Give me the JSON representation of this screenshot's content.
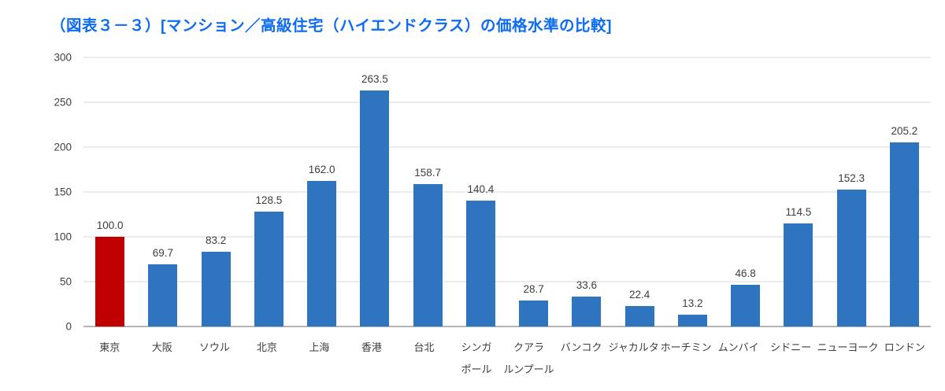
{
  "title": "（図表３－３）[マンション／高級住宅（ハイエンドクラス）の価格水準の比較]",
  "colors": {
    "title": "#0e6cf2",
    "bar_default": "#2f74bf",
    "bar_highlight": "#c00000",
    "gridline": "#d9d9d9",
    "baseline": "#b4b4b4",
    "axis_text": "#404040"
  },
  "chart_data": {
    "type": "bar",
    "title": "（図表３－３）[マンション／高級住宅（ハイエンドクラス）の価格水準の比較]",
    "categories": [
      "東京",
      "大阪",
      "ソウル",
      "北京",
      "上海",
      "香港",
      "台北",
      "シンガポール",
      "クアラルンプール",
      "バンコク",
      "ジャカルタ",
      "ホーチミン",
      "ムンバイ",
      "シドニー",
      "ニューヨーク",
      "ロンドン"
    ],
    "category_lines": [
      [
        "東京"
      ],
      [
        "大阪"
      ],
      [
        "ソウル"
      ],
      [
        "北京"
      ],
      [
        "上海"
      ],
      [
        "香港"
      ],
      [
        "台北"
      ],
      [
        "シンガ",
        "ポール"
      ],
      [
        "クアラ",
        "ルンプール"
      ],
      [
        "バンコク"
      ],
      [
        "ジャカルタ"
      ],
      [
        "ホーチミン"
      ],
      [
        "ムンバイ"
      ],
      [
        "シドニー"
      ],
      [
        "ニューヨーク"
      ],
      [
        "ロンドン"
      ]
    ],
    "values": [
      100.0,
      69.7,
      83.2,
      128.5,
      162.0,
      263.5,
      158.7,
      140.4,
      28.7,
      33.6,
      22.4,
      13.2,
      46.8,
      114.5,
      152.3,
      205.2
    ],
    "value_labels": [
      "100.0",
      "69.7",
      "83.2",
      "128.5",
      "162.0",
      "263.5",
      "158.7",
      "140.4",
      "28.7",
      "33.6",
      "22.4",
      "13.2",
      "46.8",
      "114.5",
      "152.3",
      "205.2"
    ],
    "highlight_index": 0,
    "xlabel": "",
    "ylabel": "",
    "ylim": [
      0,
      300
    ],
    "y_ticks": [
      0,
      50,
      100,
      150,
      200,
      250,
      300
    ],
    "grid": true,
    "legend": "none"
  }
}
